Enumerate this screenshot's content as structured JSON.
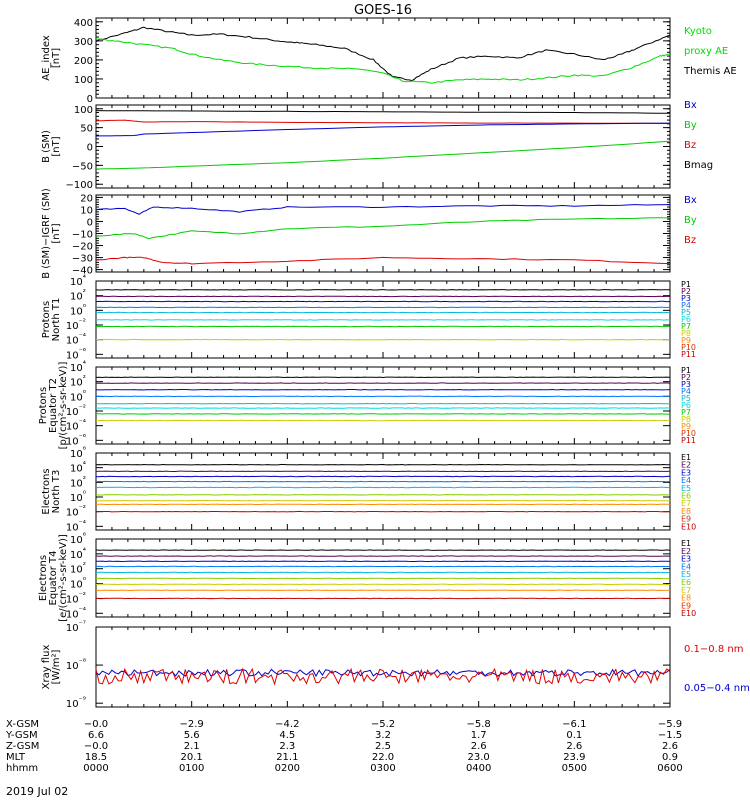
{
  "title": "GOES-16",
  "date": "2019 Jul 02",
  "chart_data": [
    {
      "type": "line",
      "ylabel": [
        "AE_index",
        "[nT]"
      ],
      "ylim": [
        0,
        420
      ],
      "yscale": "linear",
      "yticks": [
        0,
        100,
        200,
        300,
        400
      ],
      "ytick_labels": [
        "0",
        "100",
        "200",
        "300",
        "400"
      ],
      "legend": [
        {
          "text": "Kyoto",
          "color": "#00dd00"
        },
        {
          "text": "proxy AE",
          "color": "#00dd00"
        },
        {
          "text": "Themis AE",
          "color": "#000000"
        }
      ],
      "series": [
        {
          "color": "#000000",
          "x": [
            0,
            0.3,
            0.5,
            0.8,
            1.0,
            1.3,
            1.6,
            1.9,
            2.1,
            2.3,
            2.6,
            2.9,
            3.1,
            3.3,
            3.5,
            3.8,
            4.1,
            4.4,
            4.7,
            5.0,
            5.3,
            5.5,
            5.7,
            6.0
          ],
          "values": [
            300,
            340,
            370,
            345,
            330,
            335,
            320,
            300,
            290,
            280,
            260,
            200,
            110,
            95,
            150,
            210,
            220,
            210,
            250,
            230,
            200,
            230,
            270,
            330
          ]
        },
        {
          "color": "#00dd00",
          "x": [
            0,
            0.2,
            0.5,
            0.8,
            1.0,
            1.3,
            1.6,
            1.9,
            2.2,
            2.5,
            2.8,
            3.0,
            3.2,
            3.5,
            3.8,
            4.1,
            4.4,
            4.7,
            5.0,
            5.3,
            5.6,
            5.9,
            6.0
          ],
          "values": [
            310,
            300,
            280,
            260,
            230,
            200,
            180,
            170,
            160,
            155,
            150,
            130,
            90,
            80,
            95,
            100,
            95,
            105,
            120,
            115,
            160,
            220,
            230
          ]
        }
      ]
    },
    {
      "type": "line",
      "ylabel": [
        "B (SM)",
        "[nT]"
      ],
      "ylim": [
        -110,
        110
      ],
      "yscale": "linear",
      "yticks": [
        -100,
        -50,
        0,
        50,
        100
      ],
      "ytick_labels": [
        "−100",
        "−50",
        "0",
        "50",
        "100"
      ],
      "legend": [
        {
          "text": "Bx",
          "color": "#0000cc"
        },
        {
          "text": "By",
          "color": "#00cc00"
        },
        {
          "text": "Bz",
          "color": "#dd0000"
        },
        {
          "text": "Bmag",
          "color": "#000000"
        }
      ],
      "series": [
        {
          "color": "#000000",
          "x": [
            0,
            1,
            2,
            3,
            4,
            5,
            6
          ],
          "values": [
            95,
            94,
            93,
            92,
            91,
            90,
            88
          ]
        },
        {
          "color": "#dd0000",
          "x": [
            0,
            0.3,
            0.5,
            1,
            2,
            3,
            4,
            5,
            6
          ],
          "values": [
            68,
            70,
            65,
            66,
            64,
            63,
            62,
            62,
            61
          ]
        },
        {
          "color": "#0000cc",
          "x": [
            0,
            0.4,
            0.5,
            1,
            2,
            3,
            4,
            5,
            6
          ],
          "values": [
            28,
            29,
            33,
            37,
            45,
            52,
            57,
            60,
            62
          ]
        },
        {
          "color": "#00cc00",
          "x": [
            0,
            0.5,
            1,
            2,
            3,
            4,
            5,
            6
          ],
          "values": [
            -60,
            -57,
            -52,
            -43,
            -31,
            -17,
            -3,
            14
          ]
        }
      ]
    },
    {
      "type": "line",
      "ylabel": [
        "B (SM)−IGRF (SM)",
        "[nT]"
      ],
      "ylim": [
        -42,
        22
      ],
      "yscale": "linear",
      "yticks": [
        -40,
        -30,
        -20,
        -10,
        0,
        10,
        20
      ],
      "ytick_labels": [
        "−40",
        "−30",
        "−20",
        "−10",
        "0",
        "10",
        "20"
      ],
      "legend": [
        {
          "text": "Bx",
          "color": "#0000cc"
        },
        {
          "text": "By",
          "color": "#00cc00"
        },
        {
          "text": "Bz",
          "color": "#dd0000"
        }
      ],
      "series": [
        {
          "color": "#0000cc",
          "x": [
            0,
            0.3,
            0.45,
            0.6,
            1,
            1.5,
            2,
            3,
            4,
            5,
            6
          ],
          "values": [
            10,
            11,
            6,
            12,
            11,
            8,
            12,
            12,
            13,
            13,
            14
          ]
        },
        {
          "color": "#00cc00",
          "x": [
            0,
            0.4,
            0.55,
            1,
            1.5,
            2,
            3,
            4,
            5,
            6
          ],
          "values": [
            -12,
            -10,
            -14,
            -8,
            -10,
            -6,
            -4,
            0,
            2,
            3
          ]
        },
        {
          "color": "#dd0000",
          "x": [
            0,
            0.3,
            0.5,
            0.7,
            1,
            2,
            3,
            4,
            5,
            6
          ],
          "values": [
            -32,
            -30,
            -30,
            -34,
            -35,
            -33,
            -30,
            -31,
            -32,
            -35
          ]
        }
      ]
    },
    {
      "type": "line",
      "ylabel": [
        "Protons",
        "North T1"
      ],
      "ylim": [
        -6.5,
        4
      ],
      "yscale": "log",
      "yticks": [
        4,
        2,
        0,
        -2,
        -4,
        -6
      ],
      "legend": [
        {
          "text": "P1",
          "color": "#000000"
        },
        {
          "text": "P2",
          "color": "#550055"
        },
        {
          "text": "P3",
          "color": "#0000cc"
        },
        {
          "text": "P4",
          "color": "#0077ff"
        },
        {
          "text": "P5",
          "color": "#00bbdd"
        },
        {
          "text": "P6",
          "color": "#00dddd"
        },
        {
          "text": "P7",
          "color": "#00cc00"
        },
        {
          "text": "P8",
          "color": "#cccc00"
        },
        {
          "text": "P9",
          "color": "#ff8800"
        },
        {
          "text": "P10",
          "color": "#dd3300"
        },
        {
          "text": "P11",
          "color": "#cc0000"
        }
      ],
      "series": [
        {
          "color": "#000000",
          "log10_values": [
            2.8
          ]
        },
        {
          "color": "#550055",
          "log10_values": [
            1.9
          ]
        },
        {
          "color": "#0000cc",
          "log10_values": [
            1.2
          ]
        },
        {
          "color": "#0077ff",
          "log10_values": [
            0.4
          ]
        },
        {
          "color": "#00bbdd",
          "log10_values": [
            -0.3
          ]
        },
        {
          "color": "#00dddd",
          "log10_values": [
            -1.3
          ]
        },
        {
          "color": "#00cc00",
          "log10_values": [
            -2.2
          ]
        },
        {
          "color": "#cccc00",
          "log10_values": [
            -4.0
          ]
        }
      ]
    },
    {
      "type": "line",
      "ylabel": [
        "Protons",
        "Equator T2",
        "[p/(cm²-s-sr-keV)]"
      ],
      "ylim": [
        -6.5,
        4
      ],
      "yscale": "log",
      "yticks": [
        4,
        2,
        0,
        -2,
        -4,
        -6
      ],
      "legend": [
        {
          "text": "P1",
          "color": "#000000"
        },
        {
          "text": "P2",
          "color": "#550055"
        },
        {
          "text": "P3",
          "color": "#0000cc"
        },
        {
          "text": "P4",
          "color": "#0077ff"
        },
        {
          "text": "P5",
          "color": "#00bbdd"
        },
        {
          "text": "P6",
          "color": "#00dddd"
        },
        {
          "text": "P7",
          "color": "#00cc00"
        },
        {
          "text": "P8",
          "color": "#cccc00"
        },
        {
          "text": "P9",
          "color": "#ff8800"
        },
        {
          "text": "P10",
          "color": "#dd3300"
        },
        {
          "text": "P11",
          "color": "#cc0000"
        }
      ],
      "series": [
        {
          "color": "#000000",
          "log10_values": [
            2.6
          ]
        },
        {
          "color": "#550055",
          "log10_values": [
            1.8
          ]
        },
        {
          "color": "#0000cc",
          "log10_values": [
            0.9
          ]
        },
        {
          "color": "#0077ff",
          "log10_values": [
            0.0
          ]
        },
        {
          "color": "#00bbdd",
          "log10_values": [
            -1.0
          ]
        },
        {
          "color": "#00dddd",
          "log10_values": [
            -1.6
          ]
        },
        {
          "color": "#00cc00",
          "log10_values": [
            -2.4
          ]
        },
        {
          "color": "#cccc00",
          "log10_values": [
            -3.3
          ]
        }
      ]
    },
    {
      "type": "line",
      "ylabel": [
        "Electrons",
        "North T3"
      ],
      "ylim": [
        -4.5,
        6
      ],
      "yscale": "log",
      "yticks": [
        6,
        4,
        2,
        0,
        -2,
        -4
      ],
      "legend": [
        {
          "text": "E1",
          "color": "#000000"
        },
        {
          "text": "E2",
          "color": "#550055"
        },
        {
          "text": "E3",
          "color": "#0000cc"
        },
        {
          "text": "E4",
          "color": "#0077ff"
        },
        {
          "text": "E5",
          "color": "#00bbdd"
        },
        {
          "text": "E6",
          "color": "#88cc00"
        },
        {
          "text": "E7",
          "color": "#cccc00"
        },
        {
          "text": "E8",
          "color": "#ff8800"
        },
        {
          "text": "E9",
          "color": "#dd3300"
        },
        {
          "text": "E10",
          "color": "#cc0000"
        }
      ],
      "series": [
        {
          "color": "#000000",
          "log10_values": [
            4.4
          ]
        },
        {
          "color": "#550055",
          "log10_values": [
            3.5
          ]
        },
        {
          "color": "#0000cc",
          "log10_values": [
            2.8
          ]
        },
        {
          "color": "#0077ff",
          "log10_values": [
            2.1
          ]
        },
        {
          "color": "#00bbdd",
          "log10_values": [
            1.3
          ]
        },
        {
          "color": "#88cc00",
          "log10_values": [
            0.3
          ]
        },
        {
          "color": "#cccc00",
          "log10_values": [
            -0.5
          ]
        },
        {
          "color": "#ff8800",
          "log10_values": [
            -1.0
          ]
        },
        {
          "color": "#cc0000",
          "log10_values": [
            -2.0
          ]
        }
      ]
    },
    {
      "type": "line",
      "ylabel": [
        "Electrons",
        "Equator T4",
        "[e/(cm²-s-sr-keV)]"
      ],
      "ylim": [
        -4.5,
        6
      ],
      "yscale": "log",
      "yticks": [
        6,
        4,
        2,
        0,
        -2,
        -4
      ],
      "legend": [
        {
          "text": "E1",
          "color": "#000000"
        },
        {
          "text": "E2",
          "color": "#550055"
        },
        {
          "text": "E3",
          "color": "#0000cc"
        },
        {
          "text": "E4",
          "color": "#0077ff"
        },
        {
          "text": "E5",
          "color": "#00bbdd"
        },
        {
          "text": "E6",
          "color": "#88cc00"
        },
        {
          "text": "E7",
          "color": "#cccc00"
        },
        {
          "text": "E8",
          "color": "#ff8800"
        },
        {
          "text": "E9",
          "color": "#dd3300"
        },
        {
          "text": "E10",
          "color": "#cc0000"
        }
      ],
      "series": [
        {
          "color": "#000000",
          "log10_values": [
            4.5
          ]
        },
        {
          "color": "#550055",
          "log10_values": [
            3.7
          ]
        },
        {
          "color": "#0000cc",
          "log10_values": [
            3.0
          ]
        },
        {
          "color": "#0077ff",
          "log10_values": [
            2.3
          ]
        },
        {
          "color": "#00bbdd",
          "log10_values": [
            1.5
          ]
        },
        {
          "color": "#88cc00",
          "log10_values": [
            0.7
          ]
        },
        {
          "color": "#cccc00",
          "log10_values": [
            -0.1
          ]
        },
        {
          "color": "#ff8800",
          "log10_values": [
            -0.9
          ]
        },
        {
          "color": "#cc0000",
          "log10_values": [
            -2.0
          ]
        }
      ]
    },
    {
      "type": "line",
      "ylabel": [
        "Xray flux",
        "[W/m²]"
      ],
      "ylim": [
        -9.1,
        -7
      ],
      "yscale": "log",
      "yticks": [
        -7,
        -8,
        -9
      ],
      "legend": [
        {
          "text": "0.1−0.8 nm",
          "color": "#dd0000"
        },
        {
          "text": "0.05−0.4 nm",
          "color": "#0000cc"
        }
      ],
      "series": [
        {
          "color": "#0000cc",
          "log10_values": [
            -8.2
          ]
        },
        {
          "color": "#dd0000",
          "log10_values": [
            -8.3
          ]
        }
      ]
    }
  ],
  "xaxis": {
    "rows": [
      {
        "label": "X-GSM",
        "values": [
          "−0.0",
          "−2.9",
          "−4.2",
          "−5.2",
          "−5.8",
          "−6.1",
          "−5.9"
        ]
      },
      {
        "label": "Y-GSM",
        "values": [
          "6.6",
          "5.6",
          "4.5",
          "3.2",
          "1.7",
          "0.1",
          "−1.5"
        ]
      },
      {
        "label": "Z-GSM",
        "values": [
          "−0.0",
          "2.1",
          "2.3",
          "2.5",
          "2.6",
          "2.6",
          "2.6"
        ]
      },
      {
        "label": "MLT",
        "values": [
          "18.5",
          "20.1",
          "21.1",
          "22.0",
          "23.0",
          "23.9",
          "0.9"
        ]
      },
      {
        "label": "hhmm",
        "values": [
          "0000",
          "0100",
          "0200",
          "0300",
          "0400",
          "0500",
          "0600"
        ]
      }
    ]
  }
}
